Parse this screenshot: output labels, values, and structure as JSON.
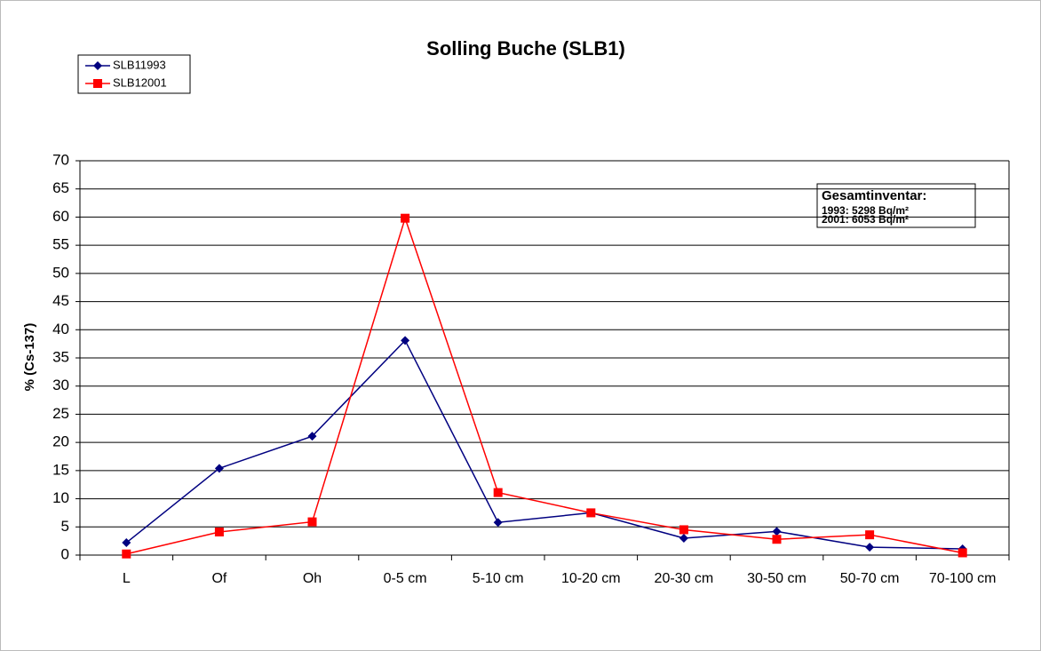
{
  "chart_data": {
    "type": "line",
    "title": "Solling Buche (SLB1)",
    "y_label": "% (Cs-137)",
    "categories": [
      "L",
      "Of",
      "Oh",
      "0-5 cm",
      "5-10 cm",
      "10-20 cm",
      "20-30 cm",
      "30-50 cm",
      "50-70 cm",
      "70-100 cm"
    ],
    "series": [
      {
        "name": "SLB11993",
        "color": "#000080",
        "marker": "diamond",
        "values": [
          2.2,
          15.4,
          21.1,
          38.1,
          5.8,
          7.5,
          3.0,
          4.2,
          1.4,
          1.1
        ]
      },
      {
        "name": "SLB12001",
        "color": "#ff0000",
        "marker": "square",
        "values": [
          0.2,
          4.1,
          5.9,
          59.8,
          11.1,
          7.5,
          4.5,
          2.8,
          3.6,
          0.4
        ]
      }
    ],
    "ylim": [
      0,
      70
    ],
    "yticks": [
      0,
      5,
      10,
      15,
      20,
      25,
      30,
      35,
      40,
      45,
      50,
      55,
      60,
      65,
      70
    ],
    "grid": true,
    "legend": "top-left",
    "annotation": {
      "title": "Gesamtinventar:",
      "lines": [
        "1993: 5298 Bq/m²",
        "2001: 6053 Bq/m²"
      ]
    }
  }
}
